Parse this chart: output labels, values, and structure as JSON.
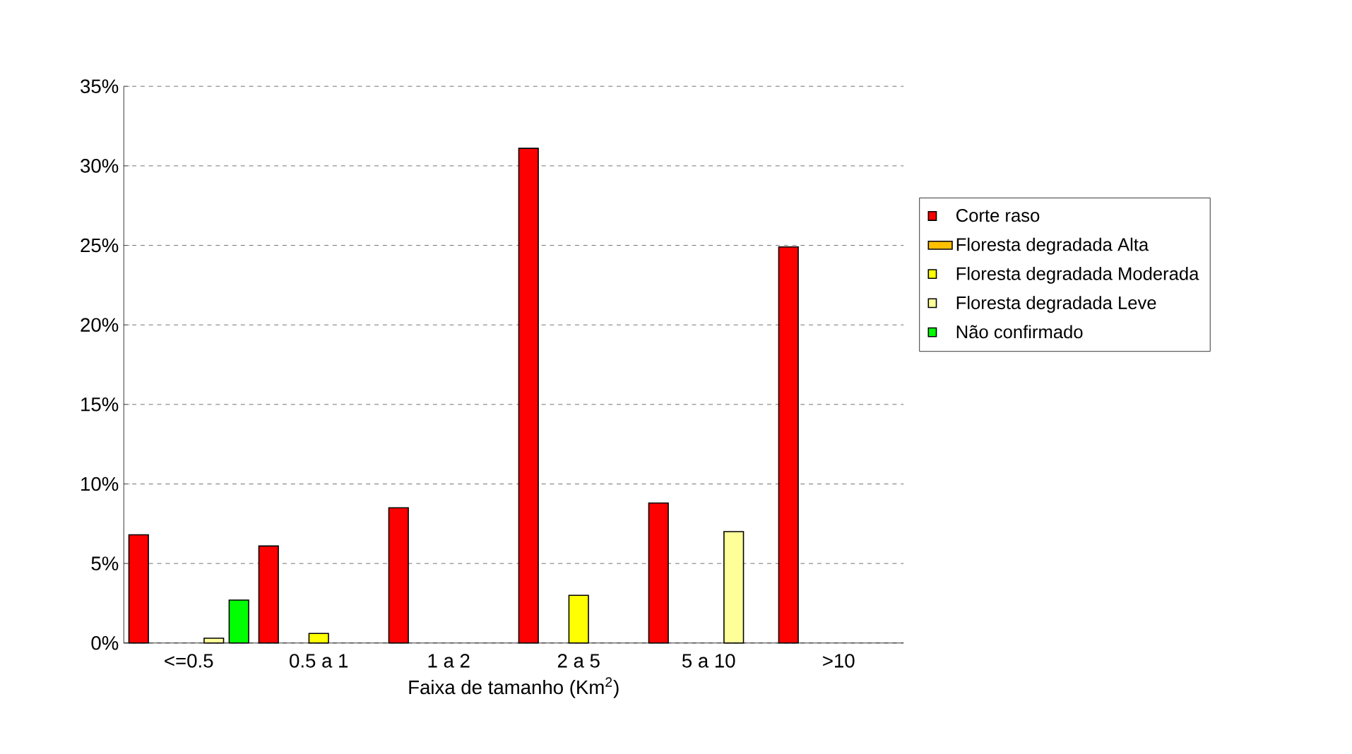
{
  "chart_data": {
    "type": "bar",
    "xlabel": "Faixa de tamanho (Km$^{2}$)",
    "categories": [
      "<=0.5",
      "0.5 a 1",
      "1 a 2",
      "2 a 5",
      "5 a 10",
      ">10"
    ],
    "series": [
      {
        "name": "Corte raso",
        "color": "#ff0000",
        "values": [
          6.8,
          6.1,
          8.5,
          31.1,
          8.8,
          24.9
        ]
      },
      {
        "name": "Floresta degradada Alta",
        "color": "#ffc000",
        "values": [
          null,
          null,
          null,
          null,
          null,
          null
        ]
      },
      {
        "name": "Floresta degradada Moderada",
        "color": "#ffff00",
        "values": [
          null,
          0.6,
          null,
          3.0,
          null,
          null
        ]
      },
      {
        "name": "Floresta degradada Leve",
        "color": "#ffff99",
        "values": [
          0.3,
          null,
          null,
          null,
          7.0,
          null
        ]
      },
      {
        "name": "Não confirmado",
        "color": "#00ff00",
        "values": [
          2.7,
          null,
          null,
          null,
          null,
          null
        ]
      }
    ],
    "ylim": [
      0,
      35
    ],
    "yticks": [
      {
        "value": 0,
        "label": "0%"
      },
      {
        "value": 5,
        "label": "5%"
      },
      {
        "value": 10,
        "label": "10%"
      },
      {
        "value": 15,
        "label": "15%"
      },
      {
        "value": 20,
        "label": "20%"
      },
      {
        "value": 25,
        "label": "25%"
      },
      {
        "value": 30,
        "label": "30%"
      },
      {
        "value": 35,
        "label": "35%"
      }
    ],
    "grid": "y",
    "legend": "right"
  }
}
